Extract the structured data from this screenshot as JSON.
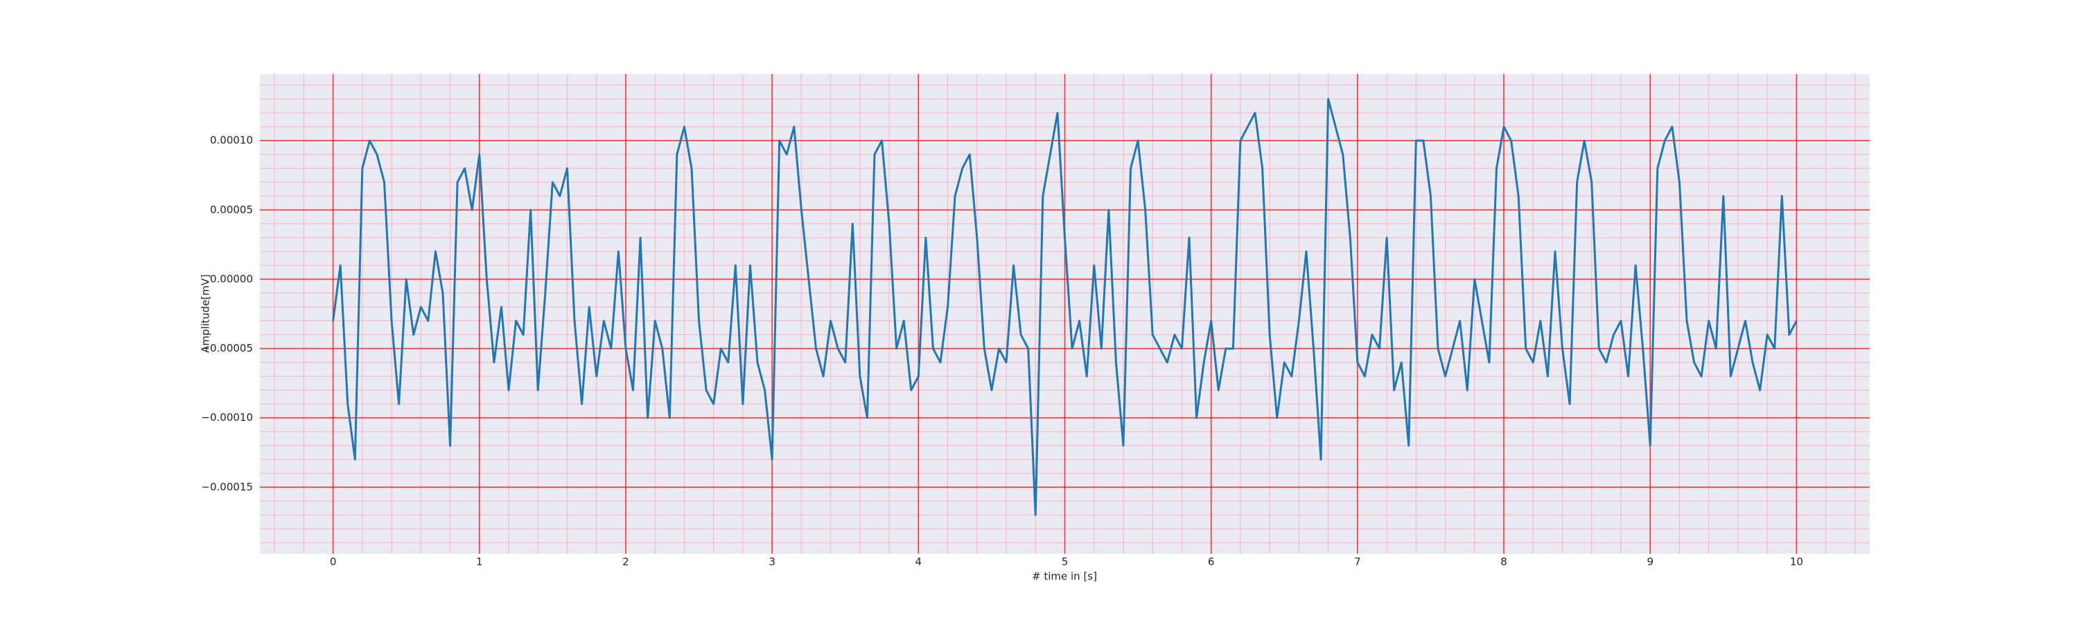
{
  "chart_data": {
    "type": "line",
    "xlabel": "# time in [s]",
    "ylabel": "Amplitude[mV]",
    "color": "#1f77b4",
    "grid": true,
    "grid_color": "#ff0000",
    "minor_grid": true,
    "minor_grid_color": "#ffb0c0",
    "xlim": [
      -0.5,
      10.5
    ],
    "xticks": [
      0,
      1,
      2,
      3,
      4,
      5,
      6,
      7,
      8,
      9,
      10
    ],
    "ylim": [
      -0.000198,
      0.000148
    ],
    "yticks": [
      {
        "value": 0.0001,
        "label": "0.00010"
      },
      {
        "value": 5e-05,
        "label": "0.00005"
      },
      {
        "value": 0,
        "label": "0.00000"
      },
      {
        "value": -5e-05,
        "label": "−0.00005"
      },
      {
        "value": -0.0001,
        "label": "−0.00010"
      },
      {
        "value": -0.00015,
        "label": "−0.00015"
      }
    ],
    "x": [
      0,
      0.05,
      0.1,
      0.15,
      0.2,
      0.25,
      0.3,
      0.35,
      0.4,
      0.45,
      0.5,
      0.55,
      0.6,
      0.65,
      0.7,
      0.75,
      0.8,
      0.85,
      0.9,
      0.95,
      1,
      1.05,
      1.1,
      1.15,
      1.2,
      1.25,
      1.3,
      1.35,
      1.4,
      1.45,
      1.5,
      1.55,
      1.6,
      1.65,
      1.7,
      1.75,
      1.8,
      1.85,
      1.9,
      1.95,
      2,
      2.05,
      2.1,
      2.15,
      2.2,
      2.25,
      2.3,
      2.35,
      2.4,
      2.45,
      2.5,
      2.55,
      2.6,
      2.65,
      2.7,
      2.75,
      2.8,
      2.85,
      2.9,
      2.95,
      3,
      3.05,
      3.1,
      3.15,
      3.2,
      3.25,
      3.3,
      3.35,
      3.4,
      3.45,
      3.5,
      3.55,
      3.6,
      3.65,
      3.7,
      3.75,
      3.8,
      3.85,
      3.9,
      3.95,
      4,
      4.05,
      4.1,
      4.15,
      4.2,
      4.25,
      4.3,
      4.35,
      4.4,
      4.45,
      4.5,
      4.55,
      4.6,
      4.65,
      4.7,
      4.75,
      4.8,
      4.85,
      4.9,
      4.95,
      5,
      5.05,
      5.1,
      5.15,
      5.2,
      5.25,
      5.3,
      5.35,
      5.4,
      5.45,
      5.5,
      5.55,
      5.6,
      5.65,
      5.7,
      5.75,
      5.8,
      5.85,
      5.9,
      5.95,
      6,
      6.05,
      6.1,
      6.15,
      6.2,
      6.25,
      6.3,
      6.35,
      6.4,
      6.45,
      6.5,
      6.55,
      6.6,
      6.65,
      6.7,
      6.75,
      6.8,
      6.85,
      6.9,
      6.95,
      7,
      7.05,
      7.1,
      7.15,
      7.2,
      7.25,
      7.3,
      7.35,
      7.4,
      7.45,
      7.5,
      7.55,
      7.6,
      7.65,
      7.7,
      7.75,
      7.8,
      7.85,
      7.9,
      7.95,
      8,
      8.05,
      8.1,
      8.15,
      8.2,
      8.25,
      8.3,
      8.35,
      8.4,
      8.45,
      8.5,
      8.55,
      8.6,
      8.65,
      8.7,
      8.75,
      8.8,
      8.85,
      8.9,
      8.95,
      9,
      9.05,
      9.1,
      9.15,
      9.2,
      9.25,
      9.3,
      9.35,
      9.4,
      9.45,
      9.5,
      9.55,
      9.6,
      9.65,
      9.7,
      9.75,
      9.8,
      9.85,
      9.9,
      9.95,
      10
    ],
    "values": [
      -3e-05,
      1e-05,
      -9e-05,
      -0.00013,
      8e-05,
      0.0001,
      9e-05,
      7e-05,
      -3e-05,
      -9e-05,
      0,
      -4e-05,
      -2e-05,
      -3e-05,
      2e-05,
      -1e-05,
      -0.00012,
      7e-05,
      8e-05,
      5e-05,
      9e-05,
      0,
      -6e-05,
      -2e-05,
      -8e-05,
      -3e-05,
      -4e-05,
      5e-05,
      -8e-05,
      -1e-05,
      7e-05,
      6e-05,
      8e-05,
      -3e-05,
      -9e-05,
      -2e-05,
      -7e-05,
      -3e-05,
      -5e-05,
      2e-05,
      -5e-05,
      -8e-05,
      3e-05,
      -0.0001,
      -3e-05,
      -5e-05,
      -0.0001,
      9e-05,
      0.00011,
      8e-05,
      -3e-05,
      -8e-05,
      -9e-05,
      -5e-05,
      -6e-05,
      1e-05,
      -9e-05,
      1e-05,
      -6e-05,
      -8e-05,
      -0.00013,
      0.0001,
      9e-05,
      0.00011,
      5e-05,
      0,
      -5e-05,
      -7e-05,
      -3e-05,
      -5e-05,
      -6e-05,
      4e-05,
      -7e-05,
      -0.0001,
      9e-05,
      0.0001,
      4e-05,
      -5e-05,
      -3e-05,
      -8e-05,
      -7e-05,
      3e-05,
      -5e-05,
      -6e-05,
      -2e-05,
      6e-05,
      8e-05,
      9e-05,
      3e-05,
      -5e-05,
      -8e-05,
      -5e-05,
      -6e-05,
      1e-05,
      -4e-05,
      -5e-05,
      -0.00017,
      6e-05,
      9e-05,
      0.00012,
      3e-05,
      -5e-05,
      -3e-05,
      -7e-05,
      1e-05,
      -5e-05,
      5e-05,
      -6e-05,
      -0.00012,
      8e-05,
      0.0001,
      5e-05,
      -4e-05,
      -5e-05,
      -6e-05,
      -4e-05,
      -5e-05,
      3e-05,
      -0.0001,
      -6e-05,
      -3e-05,
      -8e-05,
      -5e-05,
      -5e-05,
      0.0001,
      0.00011,
      0.00012,
      8e-05,
      -4e-05,
      -0.0001,
      -6e-05,
      -7e-05,
      -3e-05,
      2e-05,
      -5e-05,
      -0.00013,
      0.00013,
      0.00011,
      9e-05,
      3e-05,
      -6e-05,
      -7e-05,
      -4e-05,
      -5e-05,
      3e-05,
      -8e-05,
      -6e-05,
      -0.00012,
      0.0001,
      0.0001,
      6e-05,
      -5e-05,
      -7e-05,
      -5e-05,
      -3e-05,
      -8e-05,
      0,
      -3e-05,
      -6e-05,
      8e-05,
      0.00011,
      0.0001,
      6e-05,
      -5e-05,
      -6e-05,
      -3e-05,
      -7e-05,
      2e-05,
      -5e-05,
      -9e-05,
      7e-05,
      0.0001,
      7e-05,
      -5e-05,
      -6e-05,
      -4e-05,
      -3e-05,
      -7e-05,
      1e-05,
      -5e-05,
      -0.00012,
      8e-05,
      0.0001,
      0.00011,
      7e-05,
      -3e-05,
      -6e-05,
      -7e-05,
      -3e-05,
      -5e-05,
      6e-05,
      -7e-05,
      -5e-05,
      -3e-05,
      -6e-05,
      -8e-05,
      -4e-05,
      -5e-05,
      6e-05,
      -4e-05,
      -3e-05
    ]
  }
}
